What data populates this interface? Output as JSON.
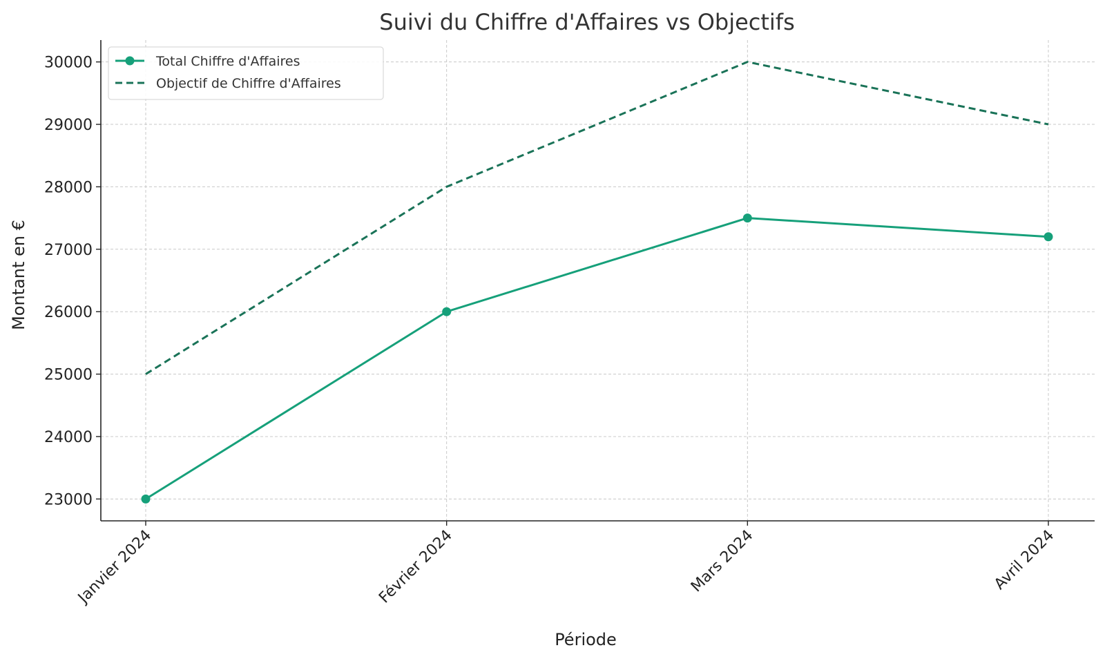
{
  "chart_data": {
    "type": "line",
    "title": "Suivi du Chiffre d'Affaires vs Objectifs",
    "xlabel": "Période",
    "ylabel": "Montant en €",
    "categories": [
      "Janvier 2024",
      "Février 2024",
      "Mars 2024",
      "Avril 2024"
    ],
    "yticks": [
      23000,
      24000,
      25000,
      26000,
      27000,
      28000,
      29000,
      30000
    ],
    "ylim": [
      22650,
      30350
    ],
    "grid": true,
    "legend_position": "top-left",
    "series": [
      {
        "name": "Total Chiffre d'Affaires",
        "values": [
          23000,
          26000,
          27500,
          27200
        ],
        "color": "#16a07a",
        "style": "solid",
        "markers": true
      },
      {
        "name": "Objectif de Chiffre d'Affaires",
        "values": [
          25000,
          28000,
          30000,
          29000
        ],
        "color": "#1a7358",
        "style": "dashed",
        "markers": false
      }
    ]
  }
}
